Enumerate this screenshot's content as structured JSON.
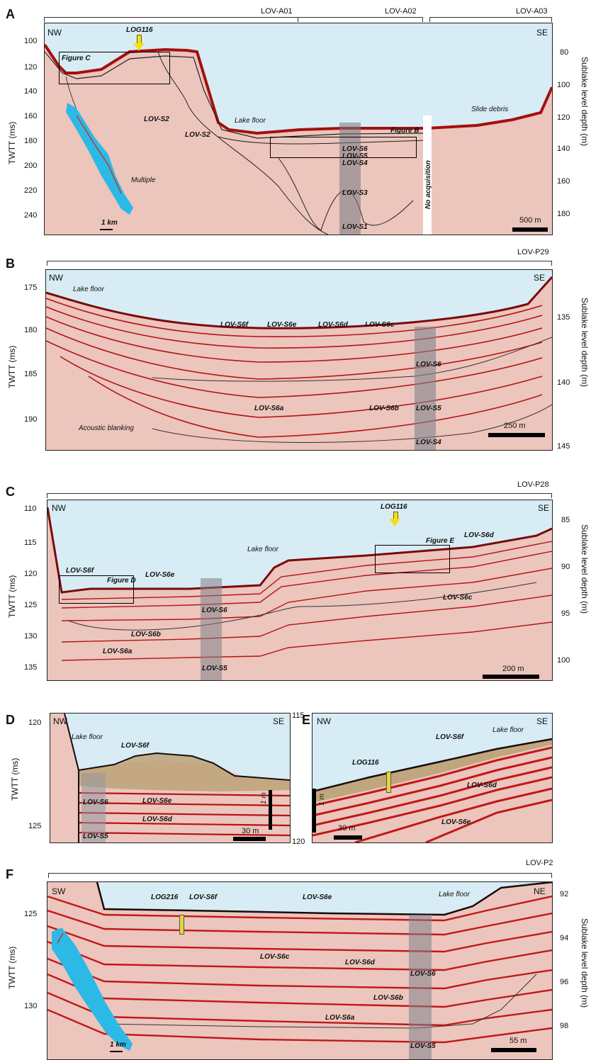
{
  "panels": {
    "A": {
      "letter": "A",
      "left_axis_title": "TWTT (ms)",
      "right_axis_title": "Sublake level depth (m)",
      "left_ticks": [
        "100",
        "120",
        "140",
        "160",
        "180",
        "200",
        "220",
        "240"
      ],
      "right_ticks": [
        "80",
        "100",
        "120",
        "140",
        "160",
        "180"
      ],
      "lines": [
        "LOV-A01",
        "LOV-A02",
        "LOV-A03"
      ],
      "dir_left": "NW",
      "dir_right": "SE",
      "log": "LOG116",
      "labels": {
        "figure_c": "Figure C",
        "figure_b": "Figure B",
        "s2a": "LOV-S2",
        "s2b": "LOV-S2",
        "lake_floor": "Lake floor",
        "slide": "Slide debris",
        "multiple": "Multiple",
        "s6": "LOV-S6",
        "s5": "LOV-S5",
        "s4": "LOV-S4",
        "s3": "LOV-S3",
        "s1": "LOV-S1",
        "no_acq": "No acquisition",
        "map_scale": "1 km"
      },
      "scale": "500 m"
    },
    "B": {
      "letter": "B",
      "left_axis_title": "TWTT (ms)",
      "right_axis_title": "Sublake level depth (m)",
      "left_ticks": [
        "175",
        "180",
        "185",
        "190"
      ],
      "right_ticks": [
        "135",
        "140",
        "145"
      ],
      "lines": [
        "LOV-P29"
      ],
      "dir_left": "NW",
      "dir_right": "SE",
      "labels": {
        "lake_floor": "Lake floor",
        "s6f": "LOV-S6f",
        "s6e": "LOV-S6e",
        "s6d": "LOV-S6d",
        "s6c": "LOV-S6c",
        "s6": "LOV-S6",
        "s5": "LOV-S5",
        "s4": "LOV-S4",
        "s6a": "LOV-S6a",
        "s6b": "LOV-S6b",
        "blank": "Acoustic blanking"
      },
      "scale": "250 m"
    },
    "C": {
      "letter": "C",
      "left_axis_title": "TWTT (ms)",
      "right_axis_title": "Sublake level depth (m)",
      "left_ticks": [
        "110",
        "115",
        "120",
        "125",
        "130",
        "135"
      ],
      "right_ticks": [
        "85",
        "90",
        "95",
        "100"
      ],
      "lines": [
        "LOV-P28"
      ],
      "dir_left": "NW",
      "dir_right": "SE",
      "log": "LOG116",
      "labels": {
        "s6f": "LOV-S6f",
        "figure_d": "Figure D",
        "s6e": "LOV-S6e",
        "lake_floor": "Lake floor",
        "figure_e": "Figure E",
        "s6d": "LOV-S6d",
        "s6c": "LOV-S6c",
        "s6": "LOV-S6",
        "s5": "LOV-S5",
        "s6b": "LOV-S6b",
        "s6a": "LOV-S6a"
      },
      "scale": "200 m"
    },
    "D": {
      "letter": "D",
      "left_axis_title": "TWTT (ms)",
      "left_ticks": [
        "120",
        "125"
      ],
      "dir_left": "NW",
      "dir_right": "SE",
      "labels": {
        "lake_floor": "Lake floor",
        "s6f": "LOV-S6f",
        "s6e": "LOV-S6e",
        "s6d": "LOV-S6d",
        "s6": "LOV-S6",
        "s5": "LOV-S5",
        "one_m": "1 m"
      },
      "scale": "30 m"
    },
    "E": {
      "letter": "E",
      "left_ticks": [
        "115",
        "120"
      ],
      "dir_left": "NW",
      "dir_right": "SE",
      "labels": {
        "lake_floor": "Lake floor",
        "s6f": "LOV-S6f",
        "log": "LOG116",
        "s6d": "LOV-S6d",
        "s6e": "LOV-S6e",
        "one_m": "1 m"
      },
      "scale": "30 m"
    },
    "F": {
      "letter": "F",
      "left_axis_title": "TWTT (ms)",
      "right_axis_title": "Sublake level depth (m)",
      "left_ticks": [
        "125",
        "130"
      ],
      "right_ticks": [
        "92",
        "94",
        "96",
        "98"
      ],
      "lines": [
        "LOV-P2"
      ],
      "dir_left": "SW",
      "dir_right": "NE",
      "labels": {
        "log": "LOG216",
        "s6f": "LOV-S6f",
        "s6e": "LOV-S6e",
        "lake_floor": "Lake floor",
        "s6c": "LOV-S6c",
        "s6d": "LOV-S6d",
        "s6": "LOV-S6",
        "s6b": "LOV-S6b",
        "s6a": "LOV-S6a",
        "s5": "LOV-S5",
        "map_scale": "1 km"
      },
      "scale": "55 m"
    }
  },
  "colors": {
    "water": "#d7ecf4",
    "reflector": "#c01818",
    "lake_map": "#2cb9e6",
    "core": "#e3d63a",
    "arrow": "#f2e01a"
  }
}
